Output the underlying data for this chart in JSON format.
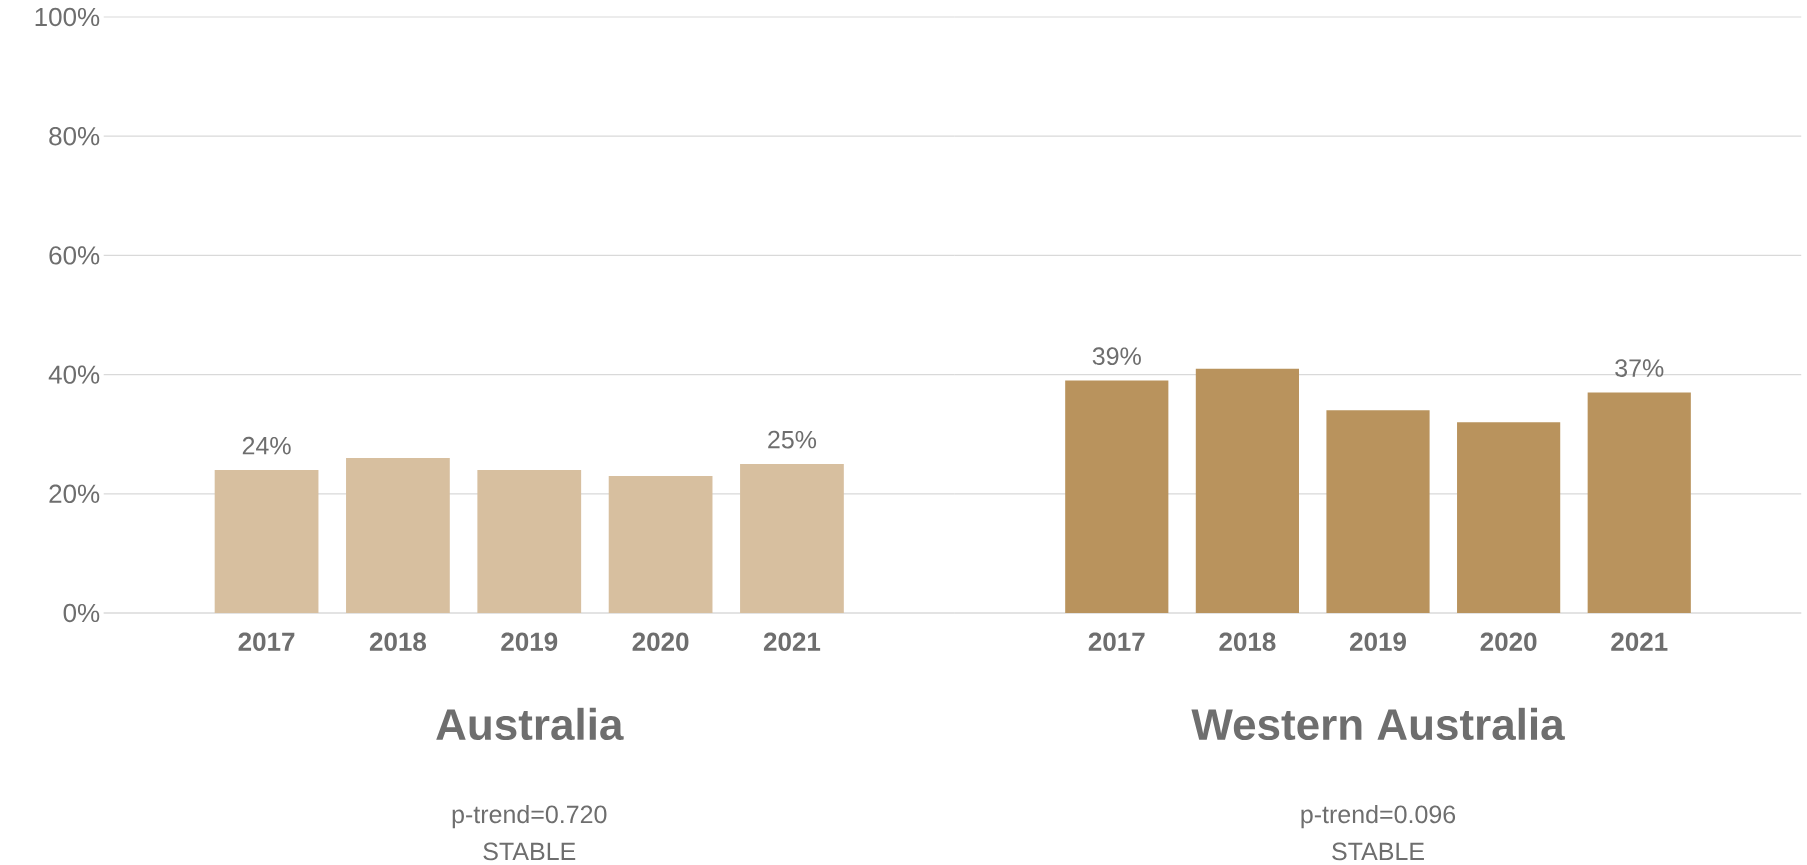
{
  "chart_data": [
    {
      "type": "bar",
      "xlabel": "Australia",
      "categories": [
        "2017",
        "2018",
        "2019",
        "2020",
        "2021"
      ],
      "values": [
        24,
        26,
        24,
        23,
        25
      ],
      "color": "#d7bf9f",
      "value_labels": [
        "24%",
        null,
        null,
        null,
        "25%"
      ],
      "ylim": [
        0,
        100
      ],
      "yticks": [
        {
          "value": 0,
          "label": "0%"
        },
        {
          "value": 20,
          "label": "20%"
        },
        {
          "value": 40,
          "label": "40%"
        },
        {
          "value": 60,
          "label": "60%"
        },
        {
          "value": 80,
          "label": "80%"
        },
        {
          "value": 100,
          "label": "100%"
        }
      ],
      "grid": "y",
      "annotations": [
        "p-trend=0.720",
        "STABLE"
      ]
    },
    {
      "type": "bar",
      "xlabel": "Western Australia",
      "categories": [
        "2017",
        "2018",
        "2019",
        "2020",
        "2021"
      ],
      "values": [
        39,
        41,
        34,
        32,
        37
      ],
      "color": "#b9935d",
      "value_labels": [
        "39%",
        null,
        null,
        null,
        "37%"
      ],
      "ylim": [
        0,
        100
      ],
      "yticks": [
        0,
        20,
        40,
        60,
        80,
        100
      ],
      "grid": "y",
      "tick_labels": "x",
      "annotations": [
        "p-trend=0.096",
        "STABLE"
      ]
    }
  ]
}
